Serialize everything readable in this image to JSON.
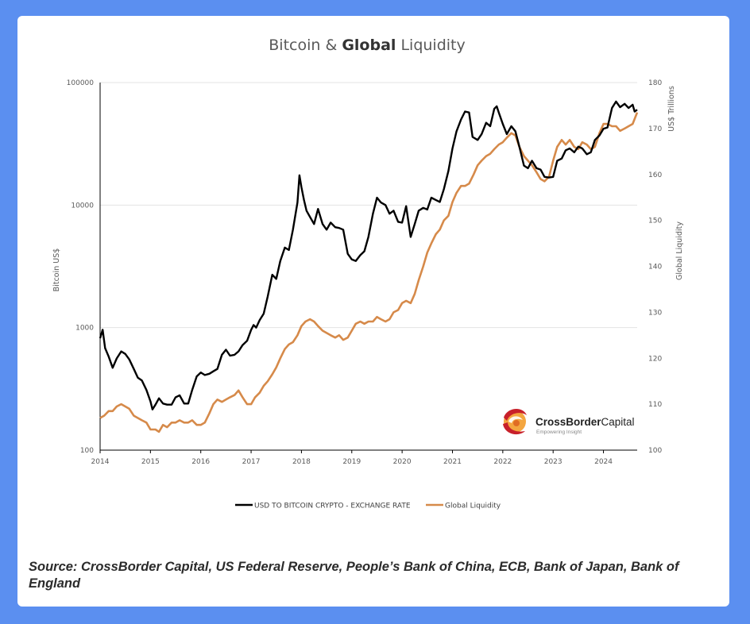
{
  "chart_data": {
    "type": "line",
    "title_parts": [
      "Bitcoin & ",
      "Global",
      " Liquidity"
    ],
    "ylabel_left": "Bitcoin US$",
    "ylabel_right_top": "US$ Trillions",
    "ylabel_right": "Global Liquidity",
    "y_left_scale": "log",
    "ylim_left": [
      100,
      100000
    ],
    "ylim_right": [
      100,
      180
    ],
    "xlim": [
      2014.0,
      2024.67
    ],
    "x_ticks": [
      "2014",
      "2015",
      "2016",
      "2017",
      "2018",
      "2019",
      "2020",
      "2021",
      "2022",
      "2023",
      "2024"
    ],
    "y_left_ticks": [
      "100000",
      "10000",
      "1000",
      "100"
    ],
    "y_right_ticks": [
      "180",
      "170",
      "160",
      "150",
      "140",
      "130",
      "120",
      "110",
      "100"
    ],
    "gridlines": "horizontal",
    "legend_position": "bottom-center",
    "series": [
      {
        "name": "USD TO BITCOIN CRYPTO - EXCHANGE RATE",
        "axis": "left",
        "color": "#000000",
        "points": [
          [
            2014.0,
            820
          ],
          [
            2014.05,
            960
          ],
          [
            2014.1,
            680
          ],
          [
            2014.17,
            580
          ],
          [
            2014.25,
            470
          ],
          [
            2014.33,
            560
          ],
          [
            2014.42,
            640
          ],
          [
            2014.5,
            610
          ],
          [
            2014.58,
            550
          ],
          [
            2014.67,
            460
          ],
          [
            2014.75,
            390
          ],
          [
            2014.83,
            370
          ],
          [
            2014.92,
            310
          ],
          [
            2015.0,
            250
          ],
          [
            2015.04,
            215
          ],
          [
            2015.1,
            235
          ],
          [
            2015.17,
            265
          ],
          [
            2015.25,
            240
          ],
          [
            2015.33,
            235
          ],
          [
            2015.42,
            235
          ],
          [
            2015.5,
            270
          ],
          [
            2015.58,
            280
          ],
          [
            2015.67,
            240
          ],
          [
            2015.75,
            240
          ],
          [
            2015.83,
            310
          ],
          [
            2015.92,
            400
          ],
          [
            2016.0,
            430
          ],
          [
            2016.08,
            410
          ],
          [
            2016.17,
            420
          ],
          [
            2016.25,
            440
          ],
          [
            2016.33,
            460
          ],
          [
            2016.42,
            600
          ],
          [
            2016.5,
            660
          ],
          [
            2016.58,
            590
          ],
          [
            2016.67,
            600
          ],
          [
            2016.75,
            640
          ],
          [
            2016.83,
            720
          ],
          [
            2016.92,
            780
          ],
          [
            2017.0,
            960
          ],
          [
            2017.05,
            1050
          ],
          [
            2017.1,
            1000
          ],
          [
            2017.17,
            1150
          ],
          [
            2017.25,
            1300
          ],
          [
            2017.33,
            1800
          ],
          [
            2017.42,
            2700
          ],
          [
            2017.5,
            2500
          ],
          [
            2017.58,
            3500
          ],
          [
            2017.67,
            4500
          ],
          [
            2017.75,
            4300
          ],
          [
            2017.83,
            6300
          ],
          [
            2017.92,
            10500
          ],
          [
            2017.96,
            17500
          ],
          [
            2018.0,
            14000
          ],
          [
            2018.05,
            11000
          ],
          [
            2018.1,
            9000
          ],
          [
            2018.17,
            8000
          ],
          [
            2018.25,
            7000
          ],
          [
            2018.33,
            9300
          ],
          [
            2018.42,
            7000
          ],
          [
            2018.5,
            6300
          ],
          [
            2018.58,
            7200
          ],
          [
            2018.67,
            6600
          ],
          [
            2018.75,
            6500
          ],
          [
            2018.83,
            6300
          ],
          [
            2018.92,
            4000
          ],
          [
            2019.0,
            3600
          ],
          [
            2019.08,
            3500
          ],
          [
            2019.17,
            3900
          ],
          [
            2019.25,
            4200
          ],
          [
            2019.33,
            5500
          ],
          [
            2019.42,
            8500
          ],
          [
            2019.5,
            11500
          ],
          [
            2019.58,
            10500
          ],
          [
            2019.67,
            10000
          ],
          [
            2019.75,
            8500
          ],
          [
            2019.83,
            9000
          ],
          [
            2019.92,
            7300
          ],
          [
            2020.0,
            7200
          ],
          [
            2020.08,
            9800
          ],
          [
            2020.17,
            5500
          ],
          [
            2020.25,
            7000
          ],
          [
            2020.33,
            9000
          ],
          [
            2020.42,
            9500
          ],
          [
            2020.5,
            9200
          ],
          [
            2020.58,
            11500
          ],
          [
            2020.67,
            11000
          ],
          [
            2020.75,
            10600
          ],
          [
            2020.83,
            13500
          ],
          [
            2020.92,
            19000
          ],
          [
            2021.0,
            29000
          ],
          [
            2021.08,
            40000
          ],
          [
            2021.17,
            50000
          ],
          [
            2021.25,
            58000
          ],
          [
            2021.33,
            57000
          ],
          [
            2021.4,
            36000
          ],
          [
            2021.5,
            34000
          ],
          [
            2021.58,
            38000
          ],
          [
            2021.67,
            47000
          ],
          [
            2021.75,
            44000
          ],
          [
            2021.83,
            61000
          ],
          [
            2021.88,
            64000
          ],
          [
            2021.92,
            57000
          ],
          [
            2022.0,
            46000
          ],
          [
            2022.08,
            38000
          ],
          [
            2022.17,
            44000
          ],
          [
            2022.25,
            40000
          ],
          [
            2022.33,
            30000
          ],
          [
            2022.42,
            21000
          ],
          [
            2022.5,
            20000
          ],
          [
            2022.58,
            23000
          ],
          [
            2022.67,
            20000
          ],
          [
            2022.75,
            19500
          ],
          [
            2022.83,
            17000
          ],
          [
            2022.92,
            16800
          ],
          [
            2023.0,
            17000
          ],
          [
            2023.08,
            23000
          ],
          [
            2023.17,
            24000
          ],
          [
            2023.25,
            28000
          ],
          [
            2023.33,
            29000
          ],
          [
            2023.42,
            27000
          ],
          [
            2023.5,
            30000
          ],
          [
            2023.58,
            29000
          ],
          [
            2023.67,
            26000
          ],
          [
            2023.75,
            27000
          ],
          [
            2023.83,
            34000
          ],
          [
            2023.92,
            37000
          ],
          [
            2024.0,
            42000
          ],
          [
            2024.08,
            43000
          ],
          [
            2024.17,
            62000
          ],
          [
            2024.25,
            70000
          ],
          [
            2024.33,
            63000
          ],
          [
            2024.42,
            67000
          ],
          [
            2024.5,
            62000
          ],
          [
            2024.58,
            66000
          ],
          [
            2024.62,
            58000
          ],
          [
            2024.67,
            60000
          ]
        ]
      },
      {
        "name": "Global Liquidity",
        "axis": "right",
        "color": "#d68a4a",
        "points": [
          [
            2014.0,
            107
          ],
          [
            2014.08,
            107.5
          ],
          [
            2014.17,
            108.5
          ],
          [
            2014.25,
            108.5
          ],
          [
            2014.33,
            109.5
          ],
          [
            2014.42,
            110
          ],
          [
            2014.5,
            109.5
          ],
          [
            2014.58,
            109
          ],
          [
            2014.67,
            107.5
          ],
          [
            2014.75,
            107
          ],
          [
            2014.83,
            106.5
          ],
          [
            2014.92,
            106
          ],
          [
            2015.0,
            104.5
          ],
          [
            2015.1,
            104.5
          ],
          [
            2015.17,
            104
          ],
          [
            2015.25,
            105.5
          ],
          [
            2015.33,
            105
          ],
          [
            2015.42,
            106
          ],
          [
            2015.5,
            106
          ],
          [
            2015.58,
            106.5
          ],
          [
            2015.67,
            106
          ],
          [
            2015.75,
            106
          ],
          [
            2015.83,
            106.5
          ],
          [
            2015.92,
            105.5
          ],
          [
            2016.0,
            105.5
          ],
          [
            2016.08,
            106
          ],
          [
            2016.17,
            108
          ],
          [
            2016.25,
            110
          ],
          [
            2016.33,
            111
          ],
          [
            2016.42,
            110.5
          ],
          [
            2016.5,
            111
          ],
          [
            2016.58,
            111.5
          ],
          [
            2016.67,
            112
          ],
          [
            2016.75,
            113
          ],
          [
            2016.83,
            111.5
          ],
          [
            2016.92,
            110
          ],
          [
            2017.0,
            110
          ],
          [
            2017.08,
            111.5
          ],
          [
            2017.17,
            112.5
          ],
          [
            2017.25,
            114
          ],
          [
            2017.33,
            115
          ],
          [
            2017.42,
            116.5
          ],
          [
            2017.5,
            118
          ],
          [
            2017.58,
            120
          ],
          [
            2017.67,
            122
          ],
          [
            2017.75,
            123
          ],
          [
            2017.83,
            123.5
          ],
          [
            2017.92,
            125
          ],
          [
            2018.0,
            127
          ],
          [
            2018.08,
            128
          ],
          [
            2018.17,
            128.5
          ],
          [
            2018.25,
            128
          ],
          [
            2018.33,
            127
          ],
          [
            2018.42,
            126
          ],
          [
            2018.5,
            125.5
          ],
          [
            2018.58,
            125
          ],
          [
            2018.67,
            124.5
          ],
          [
            2018.75,
            125
          ],
          [
            2018.83,
            124
          ],
          [
            2018.92,
            124.5
          ],
          [
            2019.0,
            126
          ],
          [
            2019.08,
            127.5
          ],
          [
            2019.17,
            128
          ],
          [
            2019.25,
            127.5
          ],
          [
            2019.33,
            128
          ],
          [
            2019.42,
            128
          ],
          [
            2019.5,
            129
          ],
          [
            2019.58,
            128.5
          ],
          [
            2019.67,
            128
          ],
          [
            2019.75,
            128.5
          ],
          [
            2019.83,
            130
          ],
          [
            2019.92,
            130.5
          ],
          [
            2020.0,
            132
          ],
          [
            2020.08,
            132.5
          ],
          [
            2020.17,
            132
          ],
          [
            2020.25,
            134
          ],
          [
            2020.33,
            137
          ],
          [
            2020.42,
            140
          ],
          [
            2020.5,
            143
          ],
          [
            2020.58,
            145
          ],
          [
            2020.67,
            147
          ],
          [
            2020.75,
            148
          ],
          [
            2020.83,
            150
          ],
          [
            2020.92,
            151
          ],
          [
            2021.0,
            154
          ],
          [
            2021.08,
            156
          ],
          [
            2021.17,
            157.5
          ],
          [
            2021.25,
            157.5
          ],
          [
            2021.33,
            158
          ],
          [
            2021.42,
            160
          ],
          [
            2021.5,
            162
          ],
          [
            2021.58,
            163
          ],
          [
            2021.67,
            164
          ],
          [
            2021.75,
            164.5
          ],
          [
            2021.83,
            165.5
          ],
          [
            2021.92,
            166.5
          ],
          [
            2022.0,
            167
          ],
          [
            2022.08,
            168
          ],
          [
            2022.17,
            169
          ],
          [
            2022.25,
            168.5
          ],
          [
            2022.33,
            166
          ],
          [
            2022.42,
            164
          ],
          [
            2022.5,
            163
          ],
          [
            2022.58,
            162
          ],
          [
            2022.67,
            160.5
          ],
          [
            2022.75,
            159
          ],
          [
            2022.83,
            158.5
          ],
          [
            2022.92,
            159.5
          ],
          [
            2023.0,
            163
          ],
          [
            2023.08,
            166
          ],
          [
            2023.17,
            167.5
          ],
          [
            2023.25,
            166.5
          ],
          [
            2023.33,
            167.5
          ],
          [
            2023.42,
            166
          ],
          [
            2023.5,
            165.5
          ],
          [
            2023.58,
            167
          ],
          [
            2023.67,
            166.5
          ],
          [
            2023.75,
            165.5
          ],
          [
            2023.83,
            166
          ],
          [
            2023.92,
            169
          ],
          [
            2024.0,
            171
          ],
          [
            2024.08,
            171
          ],
          [
            2024.17,
            170.5
          ],
          [
            2024.25,
            170.5
          ],
          [
            2024.33,
            169.5
          ],
          [
            2024.42,
            170
          ],
          [
            2024.5,
            170.5
          ],
          [
            2024.58,
            171
          ],
          [
            2024.67,
            173.5
          ]
        ]
      }
    ],
    "watermark": {
      "brand": "CrossBorderCapital",
      "brand_bold": "CrossBorder",
      "brand_light": "Capital",
      "tagline": "Empowering Insight"
    }
  },
  "caption": "Source: CrossBorder Capital, US Federal Reserve, People’s Bank of China, ECB, Bank of Japan, Bank of England",
  "colors": {
    "background": "#5b8ff0",
    "card": "#ffffff",
    "grid": "#e3e3e3",
    "logo_red": "#c8202a",
    "logo_orange": "#f08a2c"
  }
}
